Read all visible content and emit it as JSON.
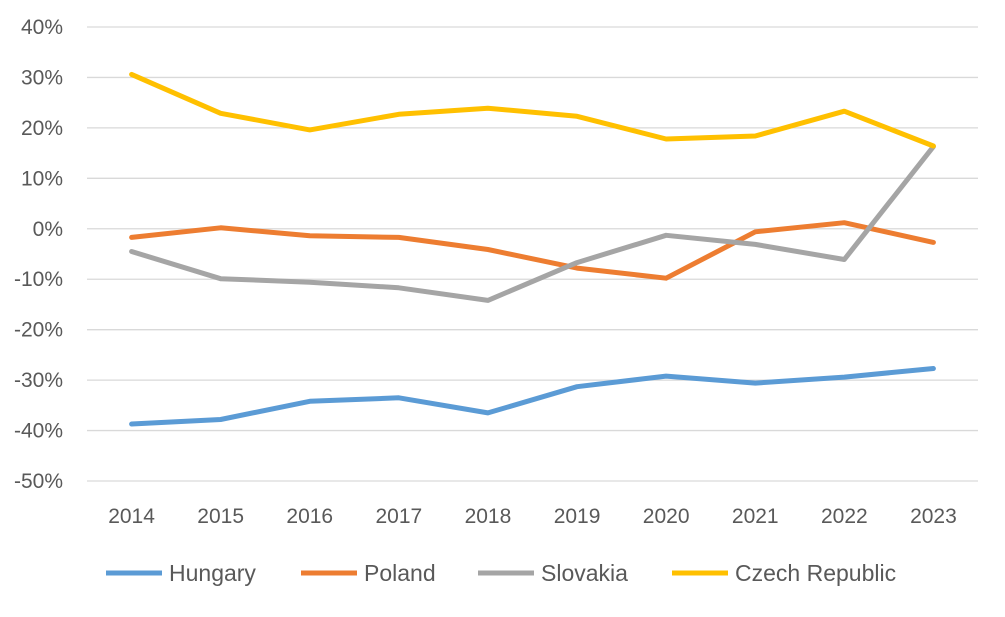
{
  "chart_data": {
    "type": "line",
    "title": "",
    "xlabel": "",
    "ylabel": "",
    "x": [
      "2014",
      "2015",
      "2016",
      "2017",
      "2018",
      "2019",
      "2020",
      "2021",
      "2022",
      "2023"
    ],
    "ylim": [
      -50,
      40
    ],
    "y_ticks": [
      40,
      30,
      20,
      10,
      0,
      -10,
      -20,
      -30,
      -40,
      -50
    ],
    "y_tick_labels": [
      "40%",
      "30%",
      "20%",
      "10%",
      "0%",
      "-10%",
      "-20%",
      "-30%",
      "-40%",
      "-50%"
    ],
    "grid": true,
    "legend_position": "bottom",
    "series": [
      {
        "name": "Hungary",
        "color": "#5B9BD5",
        "values": [
          -38.7,
          -37.8,
          -34.2,
          -33.5,
          -36.5,
          -31.3,
          -29.2,
          -30.6,
          -29.4,
          -27.7
        ]
      },
      {
        "name": "Poland",
        "color": "#ED7D31",
        "values": [
          -1.7,
          0.2,
          -1.4,
          -1.7,
          -4.1,
          -7.8,
          -9.8,
          -0.6,
          1.2,
          -2.7
        ]
      },
      {
        "name": "Slovakia",
        "color": "#A5A5A5",
        "values": [
          -4.5,
          -9.9,
          -10.6,
          -11.7,
          -14.2,
          -6.7,
          -1.3,
          -3.1,
          -6.1,
          16.3
        ]
      },
      {
        "name": "Czech Republic",
        "color": "#FFC000",
        "values": [
          30.6,
          22.9,
          19.6,
          22.7,
          23.9,
          22.3,
          17.8,
          18.4,
          23.3,
          16.4
        ]
      }
    ]
  }
}
